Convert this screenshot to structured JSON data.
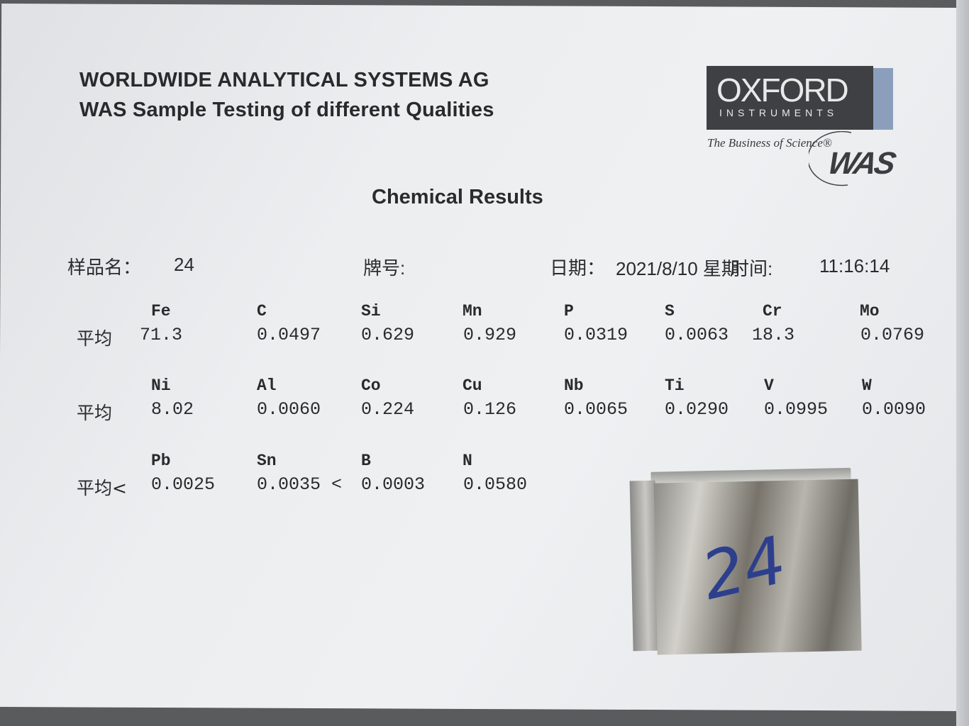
{
  "header": {
    "company": "WORLDWIDE ANALYTICAL SYSTEMS AG",
    "subtitle": "WAS Sample Testing of different Qualities"
  },
  "logo": {
    "brand": "OXFORD",
    "brand_sub": "INSTRUMENTS",
    "tagline": "The Business of Science®",
    "secondary": "WAS"
  },
  "title": "Chemical Results",
  "meta": {
    "sample_label": "样品名：",
    "sample_value": "24",
    "grade_label": "牌号:",
    "date_label": "日期：",
    "date_value": "2021/8/10 星期",
    "time_label": "时间:",
    "time_value": "11:16:14"
  },
  "results": [
    {
      "row_label": "平均",
      "elements": [
        "Fe",
        "C",
        "Si",
        "Mn",
        "P",
        "S",
        "Cr",
        "Mo"
      ],
      "values": [
        "71.3",
        "0.0497",
        "0.629",
        "0.929",
        "0.0319",
        "0.0063",
        "18.3",
        "0.0769"
      ]
    },
    {
      "row_label": "平均",
      "elements": [
        "Ni",
        "Al",
        "Co",
        "Cu",
        "Nb",
        "Ti",
        "V",
        "W"
      ],
      "values": [
        "8.02",
        "0.0060",
        "0.224",
        "0.126",
        "0.0065",
        "0.0290",
        "0.0995",
        "0.0090"
      ]
    },
    {
      "row_label": "平均<",
      "elements": [
        "Pb",
        "Sn",
        "B",
        "N"
      ],
      "values": [
        "0.0025",
        "0.0035 <",
        "0.0003",
        "0.0580"
      ]
    }
  ],
  "sample_mark": "24"
}
